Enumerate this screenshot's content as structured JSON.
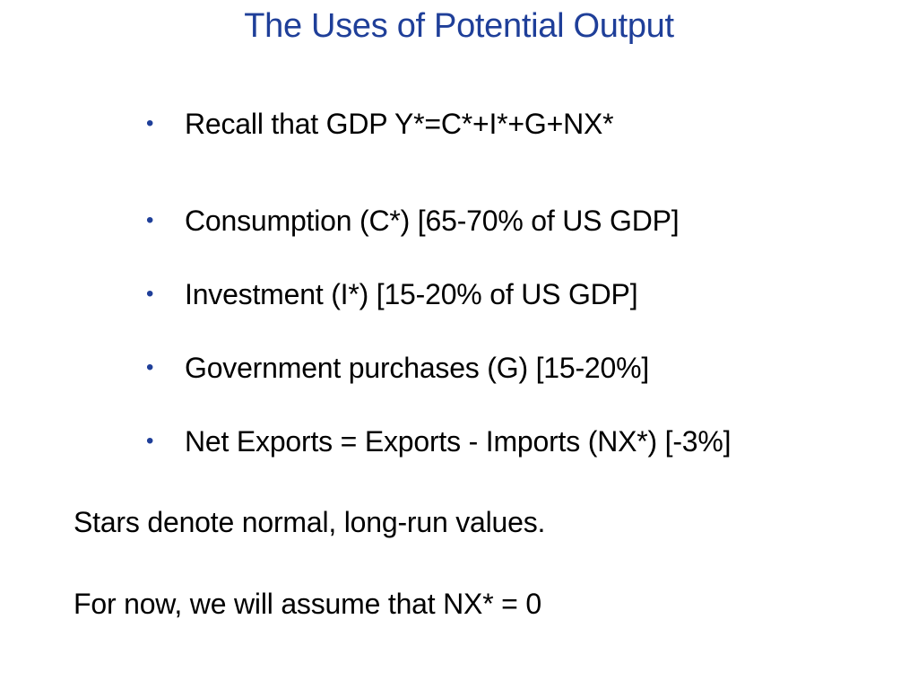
{
  "slide": {
    "title": "The Uses of Potential Output",
    "accent_color": "#1f3f99",
    "bullets": [
      {
        "marker": "•",
        "text": "Recall that GDP Y*=C*+I*+G+NX*"
      },
      {
        "marker": "•",
        "text": "Consumption (C*) [65-70% of US GDP]"
      },
      {
        "marker": "•",
        "text": "Investment (I*) [15-20% of US GDP]"
      },
      {
        "marker": "•",
        "text": "Government purchases (G) [15-20%]"
      },
      {
        "marker": "•",
        "text": "Net Exports = Exports - Imports (NX*) [-3%]"
      }
    ],
    "notes": [
      "Stars denote normal, long-run values.",
      "For now, we will assume that NX* = 0"
    ]
  }
}
